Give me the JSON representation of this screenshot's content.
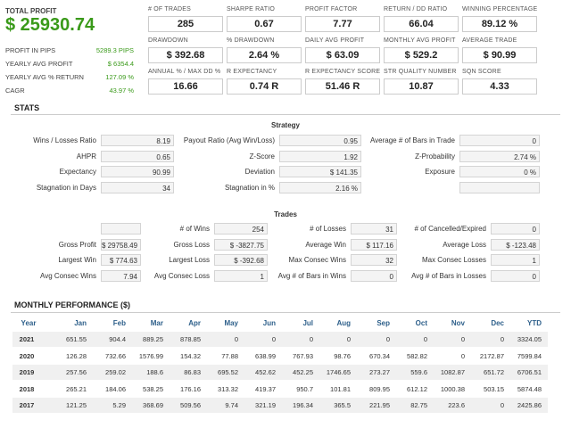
{
  "summary": {
    "title": "TOTAL PROFIT",
    "value": "$ 25930.74",
    "rows": [
      [
        "PROFIT IN PIPS",
        "5289.3 PIPS"
      ],
      [
        "YEARLY AVG PROFIT",
        "$ 6354.4"
      ],
      [
        "YEARLY AVG % RETURN",
        "127.09 %"
      ],
      [
        "CAGR",
        "43.97 %"
      ]
    ]
  },
  "metrics": [
    {
      "label": "# OF TRADES",
      "value": "285"
    },
    {
      "label": "SHARPE RATIO",
      "value": "0.67"
    },
    {
      "label": "PROFIT FACTOR",
      "value": "7.77"
    },
    {
      "label": "RETURN / DD RATIO",
      "value": "66.04"
    },
    {
      "label": "WINNING PERCENTAGE",
      "value": "89.12 %"
    },
    {
      "label": "DRAWDOWN",
      "value": "$ 392.68"
    },
    {
      "label": "% DRAWDOWN",
      "value": "2.64 %"
    },
    {
      "label": "DAILY AVG PROFIT",
      "value": "$ 63.09"
    },
    {
      "label": "MONTHLY AVG PROFIT",
      "value": "$ 529.2"
    },
    {
      "label": "AVERAGE TRADE",
      "value": "$ 90.99"
    },
    {
      "label": "ANNUAL % / MAX DD %",
      "value": "16.66"
    },
    {
      "label": "R EXPECTANCY",
      "value": "0.74 R"
    },
    {
      "label": "R EXPECTANCY SCORE",
      "value": "51.46 R"
    },
    {
      "label": "STR QUALITY NUMBER",
      "value": "10.87"
    },
    {
      "label": "SQN SCORE",
      "value": "4.33"
    }
  ],
  "stats": {
    "title": "STATS",
    "strategy": {
      "title": "Strategy",
      "rows": [
        [
          [
            "Wins / Losses Ratio",
            "8.19"
          ],
          [
            "Payout Ratio (Avg Win/Loss)",
            "0.95"
          ],
          [
            "Average # of Bars in Trade",
            "0"
          ]
        ],
        [
          [
            "AHPR",
            "0.65"
          ],
          [
            "Z-Score",
            "1.92"
          ],
          [
            "Z-Probability",
            "2.74 %"
          ]
        ],
        [
          [
            "Expectancy",
            "90.99"
          ],
          [
            "Deviation",
            "$ 141.35"
          ],
          [
            "Exposure",
            "0 %"
          ]
        ],
        [
          [
            "Stagnation in Days",
            "34"
          ],
          [
            "Stagnation in %",
            "2.16 %"
          ]
        ]
      ]
    },
    "trades": {
      "title": "Trades",
      "rows": [
        [
          [
            "# of Wins",
            "254"
          ],
          [
            "# of Losses",
            "31"
          ],
          [
            "# of Cancelled/Expired",
            "0"
          ]
        ],
        [
          [
            "Gross Profit",
            "$ 29758.49"
          ],
          [
            "Gross Loss",
            "$ -3827.75"
          ],
          [
            "Average Win",
            "$ 117.16"
          ],
          [
            "Average Loss",
            "$ -123.48"
          ]
        ],
        [
          [
            "Largest Win",
            "$ 774.63"
          ],
          [
            "Largest Loss",
            "$ -392.68"
          ],
          [
            "Max Consec Wins",
            "32"
          ],
          [
            "Max Consec Losses",
            "1"
          ]
        ],
        [
          [
            "Avg Consec Wins",
            "7.94"
          ],
          [
            "Avg Consec Loss",
            "1"
          ],
          [
            "Avg # of Bars in Wins",
            "0"
          ],
          [
            "Avg # of Bars in Losses",
            "0"
          ]
        ]
      ]
    }
  },
  "monthly": {
    "title": "MONTHLY PERFORMANCE ($)",
    "headers": [
      "Year",
      "Jan",
      "Feb",
      "Mar",
      "Apr",
      "May",
      "Jun",
      "Jul",
      "Aug",
      "Sep",
      "Oct",
      "Nov",
      "Dec",
      "YTD"
    ],
    "rows": [
      [
        "2021",
        "651.55",
        "904.4",
        "889.25",
        "878.85",
        "0",
        "0",
        "0",
        "0",
        "0",
        "0",
        "0",
        "0",
        "3324.05"
      ],
      [
        "2020",
        "126.28",
        "732.66",
        "1576.99",
        "154.32",
        "77.88",
        "638.99",
        "767.93",
        "98.76",
        "670.34",
        "582.82",
        "0",
        "2172.87",
        "7599.84"
      ],
      [
        "2019",
        "257.56",
        "259.02",
        "188.6",
        "86.83",
        "695.52",
        "452.62",
        "452.25",
        "1746.65",
        "273.27",
        "559.6",
        "1082.87",
        "651.72",
        "6706.51"
      ],
      [
        "2018",
        "265.21",
        "184.06",
        "538.25",
        "176.16",
        "313.32",
        "419.37",
        "950.7",
        "101.81",
        "809.95",
        "612.12",
        "1000.38",
        "503.15",
        "5874.48"
      ],
      [
        "2017",
        "121.25",
        "5.29",
        "368.69",
        "509.56",
        "9.74",
        "321.19",
        "196.34",
        "365.5",
        "221.95",
        "82.75",
        "223.6",
        "0",
        "2425.86"
      ]
    ]
  }
}
